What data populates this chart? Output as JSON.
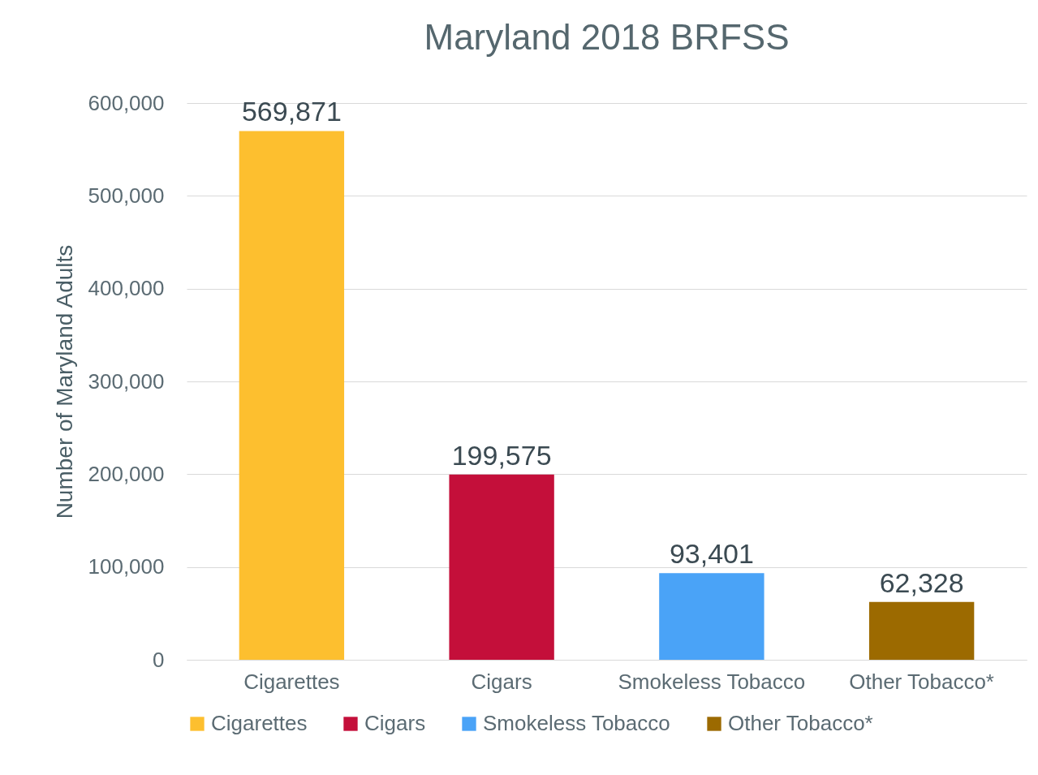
{
  "chart_data": {
    "type": "bar",
    "title": "Maryland 2018 BRFSS",
    "ylabel": "Number of Maryland Adults",
    "categories": [
      "Cigarettes",
      "Cigars",
      "Smokeless Tobacco",
      "Other Tobacco*"
    ],
    "series": [
      {
        "name": "Cigarettes",
        "color": "#fdbf2f",
        "values": [
          569871,
          null,
          null,
          null
        ],
        "value_labels": [
          "569,871",
          null,
          null,
          null
        ]
      },
      {
        "name": "Cigars",
        "color": "#c40f3a",
        "values": [
          null,
          199575,
          null,
          null
        ],
        "value_labels": [
          null,
          "199,575",
          null,
          null
        ]
      },
      {
        "name": "Smokeless Tobacco",
        "color": "#4aa3f7",
        "values": [
          null,
          null,
          93401,
          null
        ],
        "value_labels": [
          null,
          null,
          "93,401",
          null
        ]
      },
      {
        "name": "Other Tobacco*",
        "color": "#9c6a00",
        "values": [
          null,
          null,
          null,
          62328
        ],
        "value_labels": [
          null,
          null,
          null,
          "62,328"
        ]
      }
    ],
    "ylim": [
      0,
      600000
    ],
    "yticks": [
      {
        "value": 0,
        "label": "0"
      },
      {
        "value": 100000,
        "label": "100,000"
      },
      {
        "value": 200000,
        "label": "200,000"
      },
      {
        "value": 300000,
        "label": "300,000"
      },
      {
        "value": 400000,
        "label": "400,000"
      },
      {
        "value": 500000,
        "label": "500,000"
      },
      {
        "value": 600000,
        "label": "600,000"
      }
    ],
    "grid": "y",
    "legend": "bottom"
  }
}
